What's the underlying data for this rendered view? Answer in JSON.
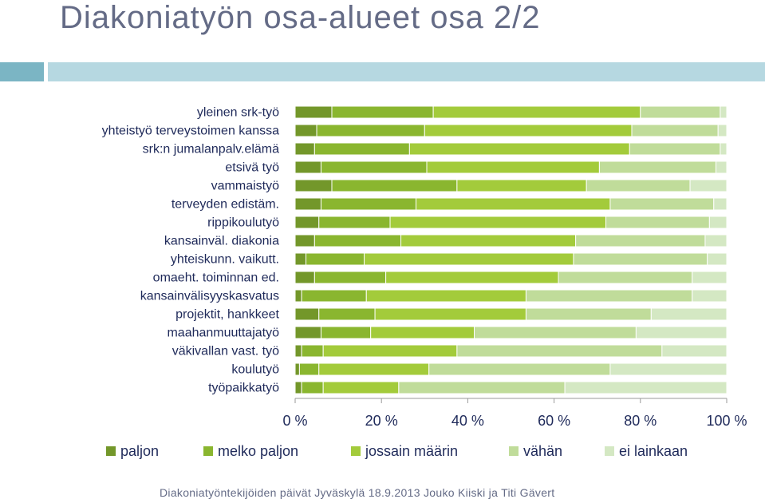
{
  "title": "Diakoniatyön osa-alueet osa 2/2",
  "footer": "Diakoniatyöntekijöiden päivät Jyväskylä 18.9.2013  Jouko Kiiski ja Titi Gävert",
  "colors": {
    "deco_dark": "#7bb5c4",
    "deco_light": "#b6d8e1",
    "series": [
      "#73972a",
      "#8ab62f",
      "#a3cb3b",
      "#c0dc9a",
      "#d4e8c3"
    ]
  },
  "chart_data": {
    "type": "bar",
    "orientation": "horizontal",
    "stacked": "percent",
    "categories": [
      "yleinen srk-työ",
      "yhteistyö terveystoimen kanssa",
      "srk:n jumalanpalv.elämä",
      "etsivä työ",
      "vammaistyö",
      "terveyden edistäm.",
      "rippikoulutyö",
      "kansainväl. diakonia",
      "yhteiskunn. vaikutt.",
      "omaeht. toiminnan ed.",
      "kansainvälisyyskasvatus",
      "projektit, hankkeet",
      "maahanmuuttajatyö",
      "väkivallan vast. työ",
      "koulutyö",
      "työpaikkatyö"
    ],
    "series": [
      {
        "name": "paljon",
        "values": [
          8.5,
          5,
          4.5,
          6,
          8.5,
          6,
          5.5,
          4.5,
          2.5,
          4.5,
          1.5,
          5.5,
          6,
          1.5,
          1,
          1.5
        ]
      },
      {
        "name": "melko paljon",
        "values": [
          23.5,
          25,
          22,
          24.5,
          29,
          22,
          16.5,
          20,
          13.5,
          16.5,
          15,
          13,
          11.5,
          5,
          4.5,
          5
        ]
      },
      {
        "name": "jossain määrin",
        "values": [
          48,
          48,
          51,
          40,
          30,
          45,
          50,
          40.5,
          48.5,
          40,
          37,
          35,
          24,
          31,
          25.5,
          17.5
        ]
      },
      {
        "name": "vähän",
        "values": [
          18.5,
          20,
          21,
          27,
          24,
          24,
          24,
          30,
          31,
          31,
          38.5,
          29,
          37.5,
          47.5,
          42,
          38.5
        ]
      },
      {
        "name": "ei lainkaan",
        "values": [
          1.5,
          2,
          1.5,
          2.5,
          8.5,
          3,
          4,
          5,
          4.5,
          8,
          8,
          17.5,
          21,
          15,
          27,
          37.5
        ]
      }
    ],
    "x_ticks": [
      "0 %",
      "20 %",
      "40 %",
      "60 %",
      "80 %",
      "100 %"
    ],
    "xlim": [
      0,
      100
    ],
    "grid": false,
    "legend_position": "bottom"
  }
}
